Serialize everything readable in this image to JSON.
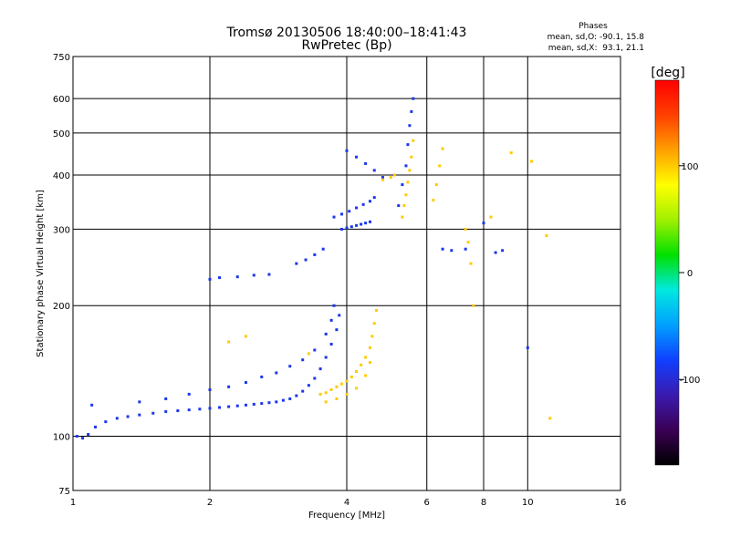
{
  "chart_data": {
    "type": "scatter",
    "title": "Tromsø 20130506 18:40:00–18:41:43",
    "subtitle": "RwPretec (Bp)",
    "xlabel": "Frequency [MHz]",
    "ylabel": "Stationary phase Virtual Height [km]",
    "x_scale": "log",
    "y_scale": "log",
    "xlim": [
      1,
      16
    ],
    "ylim": [
      75,
      750
    ],
    "x_ticks": [
      1,
      2,
      4,
      6,
      8,
      10,
      16
    ],
    "y_ticks": [
      75,
      100,
      200,
      300,
      400,
      500,
      600,
      750
    ],
    "grid": true,
    "phases_box": {
      "title": "Phases",
      "line_o": "mean, sd,O: -90.1, 15.8",
      "line_x": "mean, sd,X:  93.1, 21.1"
    },
    "colorbar": {
      "label": "[deg]",
      "range": [
        -180,
        180
      ],
      "ticks": [
        -100,
        0,
        100
      ],
      "colors": [
        "#000000",
        "#3b0055",
        "#3a1aaf",
        "#1040ff",
        "#00a0ff",
        "#00e8e0",
        "#00e000",
        "#a0f000",
        "#ffff00",
        "#ffa000",
        "#ff4000",
        "#ff0000"
      ]
    },
    "series": [
      {
        "name": "O",
        "phase": -90,
        "points": [
          [
            1.02,
            100
          ],
          [
            1.05,
            99
          ],
          [
            1.08,
            101
          ],
          [
            1.12,
            105
          ],
          [
            1.18,
            108
          ],
          [
            1.25,
            110
          ],
          [
            1.32,
            111
          ],
          [
            1.4,
            112
          ],
          [
            1.5,
            113
          ],
          [
            1.6,
            114
          ],
          [
            1.7,
            114.5
          ],
          [
            1.8,
            115
          ],
          [
            1.9,
            115.5
          ],
          [
            2.0,
            116
          ],
          [
            2.1,
            116.5
          ],
          [
            2.2,
            117
          ],
          [
            2.3,
            117.5
          ],
          [
            2.4,
            118
          ],
          [
            2.5,
            118.5
          ],
          [
            2.6,
            119
          ],
          [
            2.7,
            119.5
          ],
          [
            2.8,
            120
          ],
          [
            2.9,
            121
          ],
          [
            3.0,
            122
          ],
          [
            3.1,
            124
          ],
          [
            3.2,
            127
          ],
          [
            3.3,
            131
          ],
          [
            3.4,
            136
          ],
          [
            3.5,
            143
          ],
          [
            3.6,
            152
          ],
          [
            3.7,
            163
          ],
          [
            3.8,
            176
          ],
          [
            3.85,
            190
          ],
          [
            1.1,
            118
          ],
          [
            1.4,
            120
          ],
          [
            1.6,
            122
          ],
          [
            1.8,
            125
          ],
          [
            2.0,
            128
          ],
          [
            2.2,
            130
          ],
          [
            2.4,
            133
          ],
          [
            2.6,
            137
          ],
          [
            2.8,
            140
          ],
          [
            3.0,
            145
          ],
          [
            3.2,
            150
          ],
          [
            3.4,
            158
          ],
          [
            3.6,
            172
          ],
          [
            3.7,
            185
          ],
          [
            3.75,
            200
          ],
          [
            2.0,
            230
          ],
          [
            2.1,
            232
          ],
          [
            2.3,
            233
          ],
          [
            2.5,
            235
          ],
          [
            2.7,
            236
          ],
          [
            3.1,
            250
          ],
          [
            3.25,
            255
          ],
          [
            3.4,
            262
          ],
          [
            3.55,
            270
          ],
          [
            3.9,
            300
          ],
          [
            4.0,
            302
          ],
          [
            4.1,
            304
          ],
          [
            4.2,
            306
          ],
          [
            4.3,
            308
          ],
          [
            4.4,
            310
          ],
          [
            4.5,
            312
          ],
          [
            3.75,
            320
          ],
          [
            3.9,
            325
          ],
          [
            4.05,
            330
          ],
          [
            4.2,
            336
          ],
          [
            4.35,
            342
          ],
          [
            4.5,
            348
          ],
          [
            4.6,
            355
          ],
          [
            4.0,
            455
          ],
          [
            4.2,
            440
          ],
          [
            4.4,
            425
          ],
          [
            4.6,
            410
          ],
          [
            4.8,
            395
          ],
          [
            5.2,
            340
          ],
          [
            5.3,
            380
          ],
          [
            5.4,
            420
          ],
          [
            5.45,
            470
          ],
          [
            5.5,
            520
          ],
          [
            5.55,
            560
          ],
          [
            5.6,
            600
          ],
          [
            6.5,
            270
          ],
          [
            6.8,
            268
          ],
          [
            7.3,
            270
          ],
          [
            8.0,
            310
          ],
          [
            8.5,
            265
          ],
          [
            8.8,
            268
          ],
          [
            10.0,
            160
          ]
        ]
      },
      {
        "name": "X",
        "phase": 100,
        "points": [
          [
            3.5,
            125
          ],
          [
            3.6,
            126
          ],
          [
            3.7,
            128
          ],
          [
            3.8,
            130
          ],
          [
            3.9,
            132
          ],
          [
            4.0,
            134
          ],
          [
            4.1,
            137
          ],
          [
            4.2,
            141
          ],
          [
            4.3,
            146
          ],
          [
            4.4,
            152
          ],
          [
            4.5,
            160
          ],
          [
            4.55,
            170
          ],
          [
            4.6,
            182
          ],
          [
            4.65,
            195
          ],
          [
            3.6,
            120
          ],
          [
            3.8,
            122
          ],
          [
            4.0,
            125
          ],
          [
            4.2,
            129
          ],
          [
            4.4,
            138
          ],
          [
            4.5,
            148
          ],
          [
            2.2,
            165
          ],
          [
            2.4,
            170
          ],
          [
            3.3,
            155
          ],
          [
            5.3,
            320
          ],
          [
            5.35,
            340
          ],
          [
            5.4,
            360
          ],
          [
            5.45,
            385
          ],
          [
            5.5,
            410
          ],
          [
            5.55,
            440
          ],
          [
            5.6,
            480
          ],
          [
            4.8,
            390
          ],
          [
            5.0,
            395
          ],
          [
            5.1,
            400
          ],
          [
            6.2,
            350
          ],
          [
            6.3,
            380
          ],
          [
            6.4,
            420
          ],
          [
            6.5,
            460
          ],
          [
            7.3,
            300
          ],
          [
            7.4,
            280
          ],
          [
            7.5,
            250
          ],
          [
            7.6,
            200
          ],
          [
            8.3,
            320
          ],
          [
            9.2,
            450
          ],
          [
            10.2,
            430
          ],
          [
            11.0,
            290
          ],
          [
            11.2,
            110
          ]
        ]
      }
    ]
  }
}
